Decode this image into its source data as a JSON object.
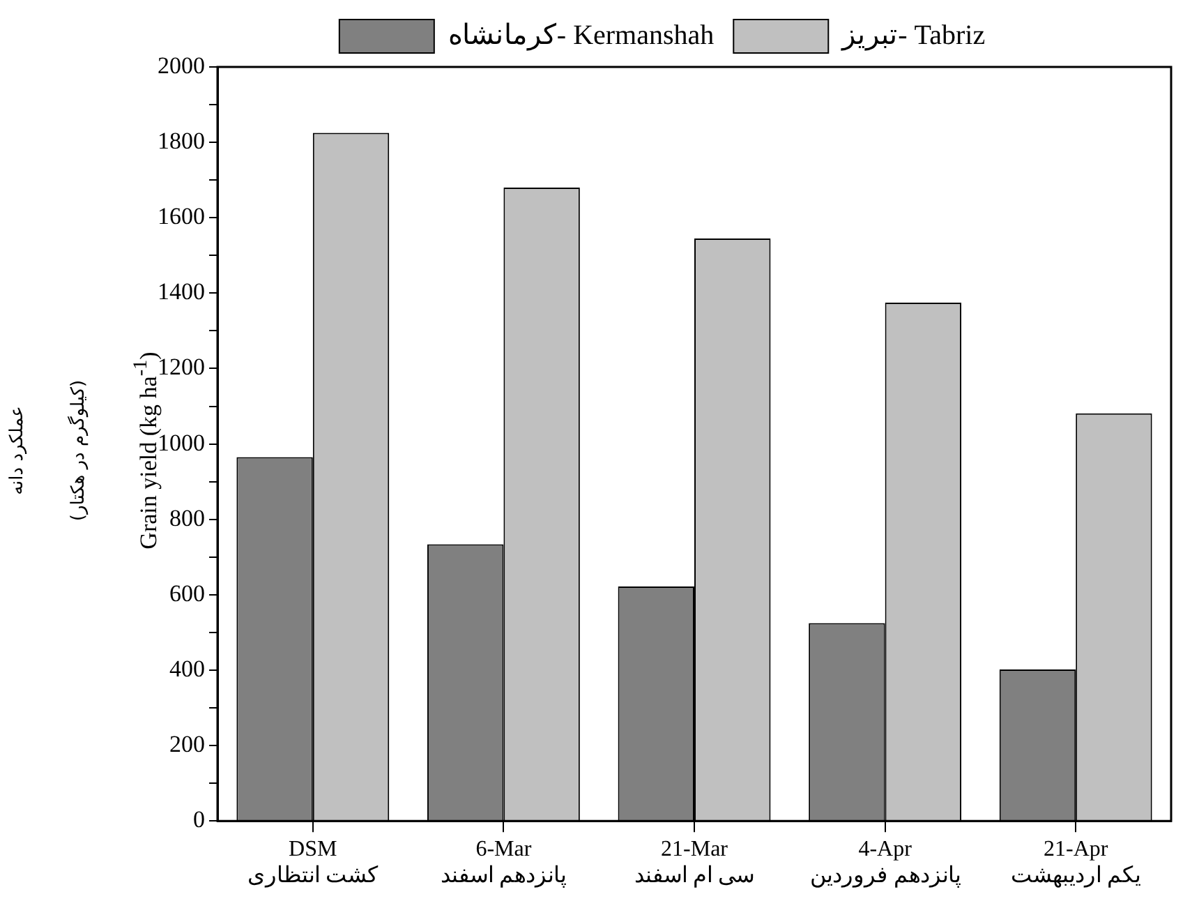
{
  "chart_data": {
    "type": "bar",
    "ylabel": "Grain yield (kg ha$^{-1}$)\n(کیلوگرم در هکتار)\nعملکرد دانه",
    "categories": [
      "DSM\nکشت انتظاری",
      "6-Mar\nپانزدهم اسفند",
      "21-Mar\nسی ام اسفند",
      "4-Apr\nپانزدهم فروردین",
      "21-Apr\nیکم اردیبهشت"
    ],
    "series": [
      {
        "name": "کرمانشاه- Kermanshah",
        "color": "#808080",
        "values": [
          965,
          734,
          622,
          525,
          402
        ]
      },
      {
        "name": "تبریز- Tabriz",
        "color": "#c0c0c0",
        "values": [
          1825,
          1680,
          1545,
          1375,
          1081
        ]
      }
    ],
    "ylim": [
      0,
      2000
    ],
    "yticks": [
      0,
      {
        "value": 100,
        "label": null
      },
      200,
      {
        "value": 300,
        "label": null
      },
      400,
      {
        "value": 500,
        "label": null
      },
      600,
      {
        "value": 700,
        "label": null
      },
      800,
      {
        "value": 900,
        "label": null
      },
      1000,
      {
        "value": 1100,
        "label": null
      },
      1200,
      {
        "value": 1300,
        "label": null
      },
      1400,
      {
        "value": 1500,
        "label": null
      },
      1600,
      {
        "value": 1700,
        "label": null
      },
      1800,
      {
        "value": 1900,
        "label": null
      },
      2000
    ],
    "grid": false,
    "legend": "top"
  }
}
